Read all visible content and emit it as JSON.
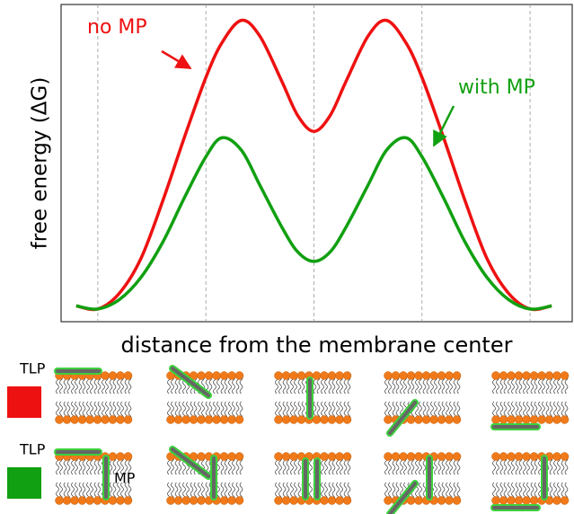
{
  "chart_data": {
    "type": "line",
    "y_label": "free energy (ΔG)",
    "x_label": "distance from the membrane center",
    "x": [
      -2.2,
      -2,
      -1.8,
      -1.6,
      -1.4,
      -1.2,
      -1,
      -0.85,
      -0.67,
      -0.5,
      -0.3,
      -0.15,
      0,
      0.15,
      0.3,
      0.5,
      0.67,
      0.85,
      1,
      1.2,
      1.4,
      1.6,
      1.8,
      2,
      2.2
    ],
    "series": [
      {
        "name": "no MP",
        "color": "#ee1111",
        "values": [
          0.05,
          0.04,
          0.09,
          0.2,
          0.38,
          0.58,
          0.77,
          0.88,
          0.95,
          0.9,
          0.76,
          0.65,
          0.6,
          0.65,
          0.76,
          0.9,
          0.95,
          0.88,
          0.77,
          0.58,
          0.38,
          0.2,
          0.09,
          0.04,
          0.05
        ]
      },
      {
        "name": "with MP",
        "color": "#11a011",
        "values": [
          0.05,
          0.04,
          0.07,
          0.14,
          0.25,
          0.39,
          0.52,
          0.58,
          0.54,
          0.43,
          0.3,
          0.22,
          0.19,
          0.22,
          0.3,
          0.43,
          0.54,
          0.58,
          0.52,
          0.39,
          0.25,
          0.14,
          0.07,
          0.04,
          0.05
        ]
      }
    ],
    "xlim": [
      -2.34,
      2.39
    ],
    "ylim": [
      0,
      1
    ],
    "x_grid": [
      -2,
      -1,
      0,
      1,
      2
    ],
    "legend_rows": [
      "TLP",
      "TLP"
    ],
    "mp_label": "MP"
  }
}
